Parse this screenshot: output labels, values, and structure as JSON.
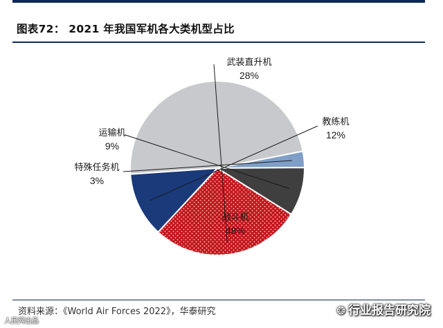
{
  "header": {
    "title": "图表72：  2021 年我国军机各大类机型占比"
  },
  "chart_data": {
    "type": "pie",
    "title": "图表72：  2021 年我国军机各大类机型占比",
    "slices": [
      {
        "label": "战斗机",
        "value": 48,
        "display": "48%",
        "color": "#c8c9cc",
        "pattern": "none"
      },
      {
        "label": "特殊任务机",
        "value": 3,
        "display": "3%",
        "color": "#7f9fc8",
        "pattern": "none"
      },
      {
        "label": "运输机",
        "value": 9,
        "display": "9%",
        "color": "#3f3f3f",
        "pattern": "none"
      },
      {
        "label": "武装直升机",
        "value": 28,
        "display": "28%",
        "color": "#c4161c",
        "pattern": "dots"
      },
      {
        "label": "教练机",
        "value": 12,
        "display": "12%",
        "color": "#1a3a7a",
        "pattern": "none"
      }
    ]
  },
  "footer": {
    "source": "资料来源：《World Air Forces 2022》，华泰研究",
    "watermark": "行业报告研究院",
    "corner_mark": "人民网出品"
  }
}
